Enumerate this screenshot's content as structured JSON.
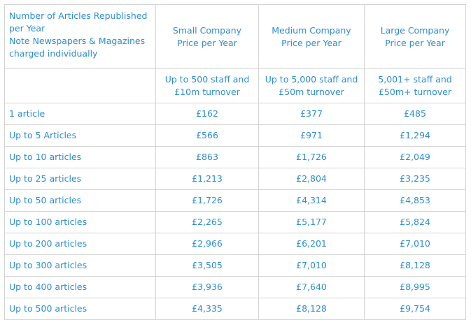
{
  "header": {
    "corner_lines": [
      "Number of Articles Republished",
      "per Year",
      "Note Newspapers & Magazines",
      "charged individually"
    ],
    "columns": [
      {
        "line1": "Small Company",
        "line2": "Price per Year",
        "sub1": "Up to 500 staff and",
        "sub2": "£10m turnover"
      },
      {
        "line1": "Medium Company",
        "line2": "Price per Year",
        "sub1": "Up to 5,000 staff and",
        "sub2": "£50m turnover"
      },
      {
        "line1": "Large Company",
        "line2": "Price per Year",
        "sub1": "5,001+ staff and",
        "sub2": "£50m+ turnover"
      }
    ]
  },
  "rows": [
    {
      "label": "1 article",
      "small": "£162",
      "medium": "£377",
      "large": "£485"
    },
    {
      "label": "Up to 5 Articles",
      "small": "£566",
      "medium": "£971",
      "large": "£1,294"
    },
    {
      "label": "Up to 10 articles",
      "small": "£863",
      "medium": "£1,726",
      "large": "£2,049"
    },
    {
      "label": "Up to 25 articles",
      "small": "£1,213",
      "medium": "£2,804",
      "large": "£3,235"
    },
    {
      "label": "Up to 50 articles",
      "small": "£1,726",
      "medium": "£4,314",
      "large": "£4,853"
    },
    {
      "label": "Up to 100 articles",
      "small": "£2,265",
      "medium": "£5,177",
      "large": "£5,824"
    },
    {
      "label": "Up to 200 articles",
      "small": "£2,966",
      "medium": "£6,201",
      "large": "£7,010"
    },
    {
      "label": "Up to 300 articles",
      "small": "£3,505",
      "medium": "£7,010",
      "large": "£8,128"
    },
    {
      "label": "Up to 400 articles",
      "small": "£3,936",
      "medium": "£7,640",
      "large": "£8,995"
    },
    {
      "label": "Up to 500 articles",
      "small": "£4,335",
      "medium": "£8,128",
      "large": "£9,754"
    }
  ]
}
